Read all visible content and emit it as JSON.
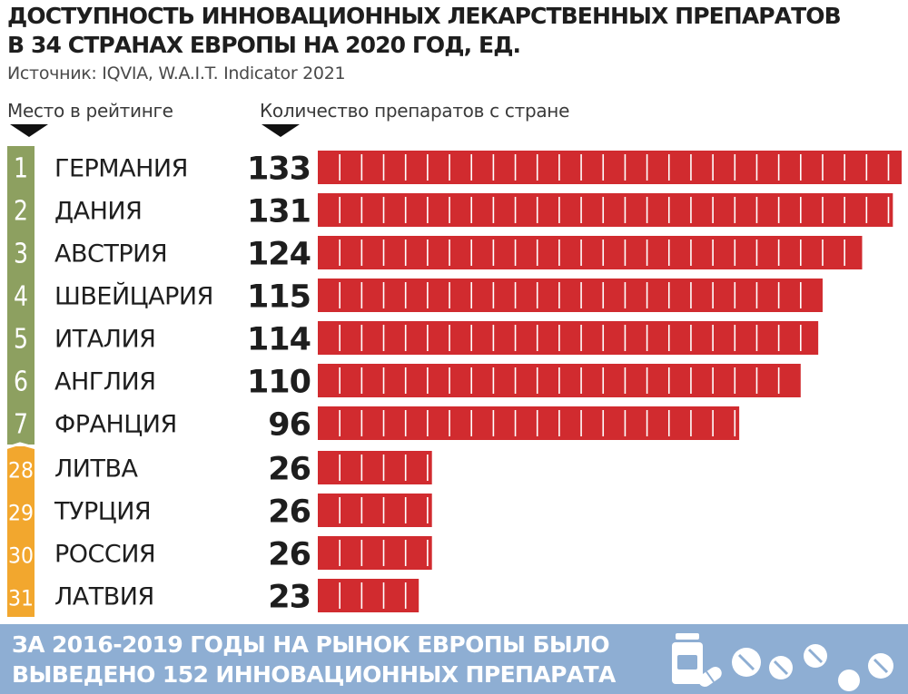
{
  "title_lines": [
    "ДОСТУПНОСТЬ ИННОВАЦИОННЫХ ЛЕКАРСТВЕННЫХ ПРЕПАРАТОВ",
    "В 34 СТРАНАХ ЕВРОПЫ НА 2020 ГОД, ЕД."
  ],
  "source": "Источник: IQVIA, W.A.I.T. Indicator 2021",
  "headers": {
    "rank": "Место в рейтинге",
    "count": "Количество препаратов с стране"
  },
  "banner": {
    "lines": [
      "ЗА 2016-2019 ГОДЫ НА РЫНОК ЕВРОПЫ БЫЛО",
      "ВЫВЕДЕНО 152 ИННОВАЦИОННЫХ ПРЕПАРАТА"
    ],
    "icon": "pills-and-bottle-icon"
  },
  "colors": {
    "bar": "#d12b2f",
    "rank_top": "#8da060",
    "rank_bottom": "#f2a72e",
    "banner": "#8eaed3"
  },
  "chart_data": {
    "type": "bar",
    "orientation": "horizontal",
    "rows": [
      {
        "rank": "1",
        "country": "ГЕРМАНИЯ",
        "value": 133,
        "group": "top"
      },
      {
        "rank": "2",
        "country": "ДАНИЯ",
        "value": 131,
        "group": "top"
      },
      {
        "rank": "3",
        "country": "АВСТРИЯ",
        "value": 124,
        "group": "top"
      },
      {
        "rank": "4",
        "country": "ШВЕЙЦАРИЯ",
        "value": 115,
        "group": "top"
      },
      {
        "rank": "5",
        "country": "ИТАЛИЯ",
        "value": 114,
        "group": "top"
      },
      {
        "rank": "6",
        "country": "АНГЛИЯ",
        "value": 110,
        "group": "top"
      },
      {
        "rank": "7",
        "country": "ФРАНЦИЯ",
        "value": 96,
        "group": "top"
      },
      {
        "rank": "28",
        "country": "ЛИТВА",
        "value": 26,
        "group": "bottom"
      },
      {
        "rank": "29",
        "country": "ТУРЦИЯ",
        "value": 26,
        "group": "bottom"
      },
      {
        "rank": "30",
        "country": "РОССИЯ",
        "value": 26,
        "group": "bottom"
      },
      {
        "rank": "31",
        "country": "ЛАТВИЯ",
        "value": 23,
        "group": "bottom"
      }
    ],
    "xlim": [
      0,
      133
    ],
    "segment_unit": 5,
    "grid": false,
    "legend": "none"
  }
}
